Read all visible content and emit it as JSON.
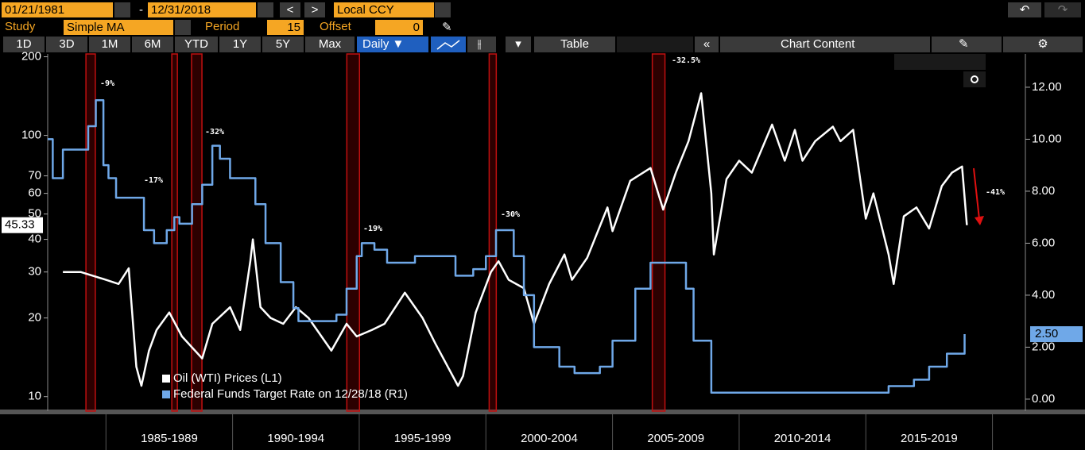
{
  "toolbar": {
    "start_date": "01/21/1981",
    "dash": "-",
    "end_date": "12/31/2018",
    "currency": "Local CCY",
    "study_label": "Study",
    "study": "Simple MA",
    "period_label": "Period",
    "period": 15,
    "offset_label": "Offset",
    "offset": 0,
    "buttons": [
      "1D",
      "3D",
      "1M",
      "6M",
      "YTD",
      "1Y",
      "5Y",
      "Max"
    ],
    "frequency": "Daily ▼",
    "table": "Table",
    "chart_content": "Chart Content"
  },
  "chart_data": {
    "type": "line",
    "legend": "bottom-left",
    "xlim": [
      1982.7,
      2021.3
    ],
    "xticks": [
      1985,
      1990,
      1995,
      2000,
      2005,
      2010,
      2015,
      2020
    ],
    "period_labels": [
      "1985-1989",
      "1990-1994",
      "1995-1999",
      "2000-2004",
      "2005-2009",
      "2010-2014",
      "2015-2019"
    ],
    "ylim": [
      8.8,
      205
    ],
    "log_scale": true,
    "yticks": [
      10,
      20,
      30,
      40,
      50,
      60,
      70,
      100,
      200
    ],
    "y2lim": [
      -0.46,
      13.28
    ],
    "y2ticks": [
      {
        "value": 0,
        "label": "0.00"
      },
      {
        "value": 2,
        "label": "2.00"
      },
      {
        "value": 4,
        "label": "4.00"
      },
      {
        "value": 6,
        "label": "6.00"
      },
      {
        "value": 8,
        "label": "8.00"
      },
      {
        "value": 10,
        "label": "10.00"
      },
      {
        "value": 12,
        "label": "12.00"
      }
    ],
    "shaded_periods": [
      [
        1984.21,
        1984.58
      ],
      [
        1987.6,
        1987.82
      ],
      [
        1988.38,
        1988.79
      ],
      [
        1994.51,
        1995.01
      ],
      [
        2000.13,
        2000.41
      ],
      [
        2006.57,
        2007.07
      ]
    ],
    "annotations": [
      "-9%",
      "-17%",
      "-32%",
      "-19%",
      "-30%",
      "-32.5%",
      "-41%"
    ],
    "series": [
      {
        "name": "Oil (WTI) Prices (L1)",
        "color": "#ffffff",
        "last_label": "45.33",
        "x": [
          1983.3,
          1984,
          1985,
          1985.5,
          1985.9,
          1986.2,
          1986.4,
          1986.7,
          1987,
          1987.5,
          1988,
          1988.8,
          1989.2,
          1989.9,
          1990.3,
          1990.7,
          1990.8,
          1991.1,
          1991.5,
          1992,
          1992.5,
          1993,
          1993.9,
          1994.5,
          1994.9,
          1995.5,
          1996,
          1996.8,
          1997.5,
          1998,
          1998.9,
          1999.1,
          1999.6,
          2000.2,
          2000.5,
          2000.9,
          2001.5,
          2001.9,
          2002.5,
          2003.1,
          2003.4,
          2004,
          2004.8,
          2005,
          2005.7,
          2006.5,
          2007,
          2007.5,
          2008,
          2008.5,
          2008.9,
          2009,
          2009.5,
          2010,
          2010.5,
          2011.3,
          2011.8,
          2012.2,
          2012.5,
          2013,
          2013.7,
          2014,
          2014.5,
          2015,
          2015.3,
          2015.9,
          2016.1,
          2016.5,
          2017,
          2017.5,
          2018,
          2018.4,
          2018.8,
          2018.99
        ],
        "values": [
          30,
          30,
          28,
          27,
          31,
          13,
          11,
          15,
          18,
          21,
          17,
          14,
          19,
          22,
          18,
          33,
          40,
          22,
          20,
          19,
          22,
          20,
          15,
          19,
          17,
          18,
          19,
          25,
          20,
          16,
          11,
          12,
          21,
          30,
          33,
          28,
          26,
          19,
          27,
          35,
          28,
          34,
          53,
          43,
          67,
          75,
          52,
          72,
          95,
          145,
          60,
          35,
          68,
          80,
          72,
          110,
          80,
          105,
          80,
          95,
          108,
          95,
          105,
          48,
          60,
          35,
          27,
          49,
          53,
          44,
          64,
          72,
          76,
          45.33
        ]
      },
      {
        "name": "Federal Funds Target Rate on 12/28/18 (R1)",
        "color": "#6fa8e8",
        "axis": "y2",
        "step": true,
        "last_label": "2.50",
        "x": [
          1982.7,
          1982.9,
          1983.3,
          1984.1,
          1984.3,
          1984.6,
          1984.9,
          1985.1,
          1985.4,
          1986.1,
          1986.5,
          1986.9,
          1987.4,
          1987.7,
          1987.9,
          1988.3,
          1988.4,
          1988.8,
          1989.2,
          1989.5,
          1989.9,
          1990.9,
          1991.3,
          1991.9,
          1992.4,
          1992.6,
          1994.1,
          1994.5,
          1994.9,
          1995.1,
          1995.6,
          1996.1,
          1997.2,
          1998.8,
          1999.5,
          2000,
          2000.4,
          2000.9,
          2001.1,
          2001.5,
          2001.9,
          2002.9,
          2003.5,
          2004.5,
          2005,
          2005.9,
          2006.5,
          2007.7,
          2007.9,
          2008.2,
          2008.9,
          2015.9,
          2016.9,
          2017.5,
          2018.2,
          2018.9
        ],
        "values": [
          10,
          8.5,
          9.6,
          9.6,
          10.5,
          11.5,
          9,
          8.5,
          7.75,
          7.75,
          6.5,
          6,
          6.5,
          7,
          6.75,
          6.75,
          7.5,
          8.25,
          9.75,
          9.25,
          8.5,
          7.5,
          6,
          4.5,
          3.5,
          3,
          3.25,
          4.25,
          5.5,
          6,
          5.75,
          5.25,
          5.5,
          4.75,
          5,
          5.5,
          6.5,
          6.5,
          5.5,
          4,
          2,
          1.25,
          1,
          1.25,
          2.25,
          4.25,
          5.25,
          5.25,
          4.25,
          2.25,
          0.25,
          0.5,
          0.75,
          1.25,
          1.75,
          2.5
        ]
      }
    ]
  }
}
